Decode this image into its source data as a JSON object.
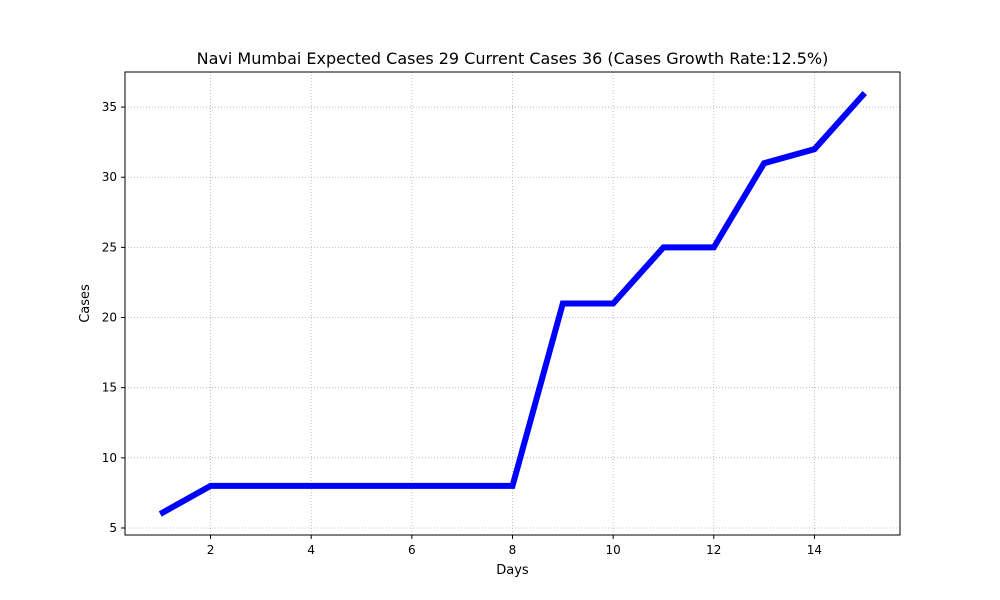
{
  "chart_data": {
    "type": "line",
    "title": "Navi Mumbai Expected Cases 29 Current Cases 36 (Cases Growth Rate:12.5%)",
    "xlabel": "Days",
    "ylabel": "Cases",
    "x": [
      1,
      2,
      3,
      4,
      5,
      6,
      7,
      8,
      9,
      10,
      11,
      12,
      13,
      14,
      15
    ],
    "series": [
      {
        "values": [
          6,
          8,
          8,
          8,
          8,
          8,
          8,
          8,
          21,
          21,
          25,
          25,
          31,
          32,
          36
        ],
        "color": "#0000ff"
      }
    ],
    "xlim": [
      0.3,
      15.7
    ],
    "ylim": [
      4.5,
      37.5
    ],
    "xticks": [
      2,
      4,
      6,
      8,
      10,
      12,
      14
    ],
    "yticks": [
      5,
      10,
      15,
      20,
      25,
      30,
      35
    ],
    "xtick_labels": [
      "2",
      "4",
      "6",
      "8",
      "10",
      "12",
      "14"
    ],
    "ytick_labels": [
      "5",
      "10",
      "15",
      "20",
      "25",
      "30",
      "35"
    ],
    "grid": true,
    "grid_style": "dotted",
    "legend": "none"
  }
}
